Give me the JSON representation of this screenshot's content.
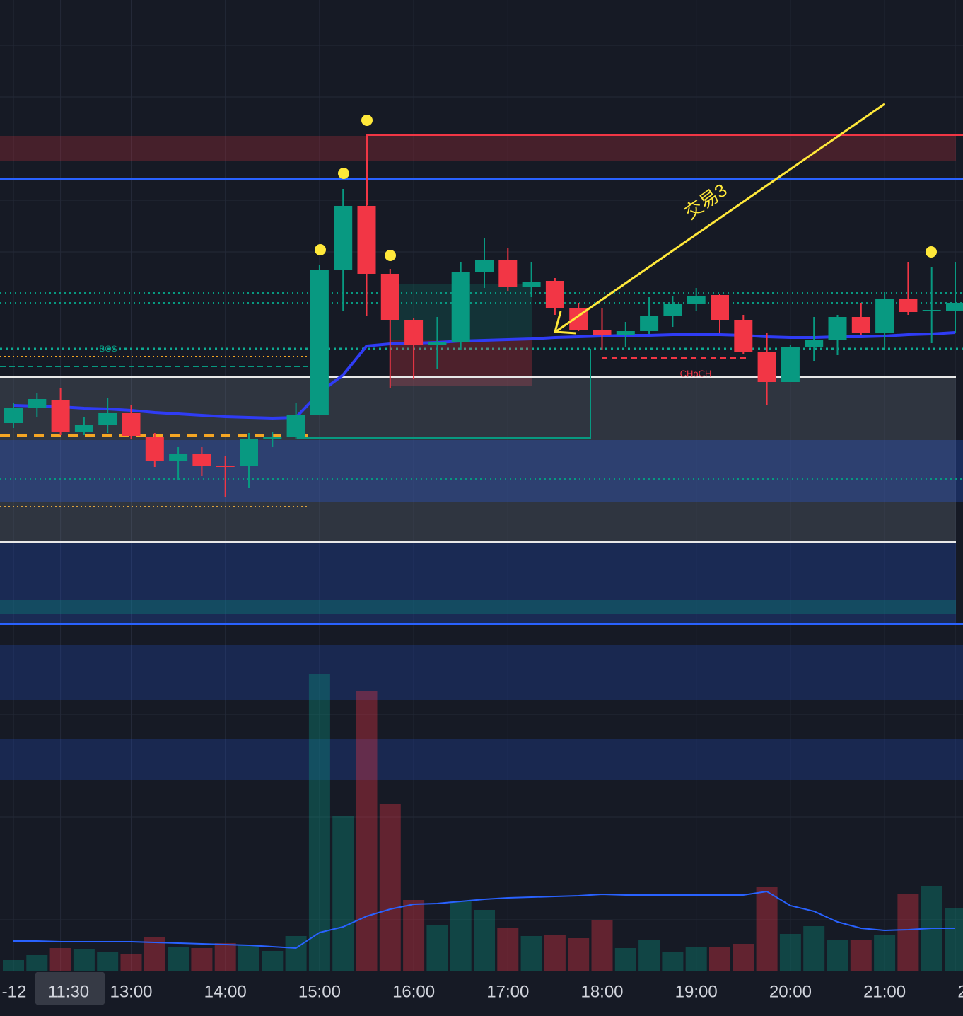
{
  "chart_data": {
    "type": "candlestick",
    "categories": [
      "-12",
      null,
      "11:30",
      null,
      null,
      "13:00",
      null,
      null,
      null,
      "14:00",
      null,
      null,
      null,
      "15:00",
      null,
      null,
      null,
      "16:00",
      null,
      null,
      null,
      "17:00",
      null,
      null,
      null,
      "18:00",
      null,
      null,
      null,
      "19:00",
      null,
      null,
      null,
      "20:00",
      null,
      null,
      null,
      "21:00",
      null,
      null,
      "2"
    ],
    "open": [
      28.2,
      30.3,
      31.5,
      27.0,
      27.9,
      29.6,
      26.2,
      22.8,
      23.8,
      22.2,
      22.2,
      26.0,
      26.3,
      29.4,
      49.9,
      58.9,
      49.3,
      42.8,
      39.2,
      39.6,
      49.6,
      51.3,
      47.5,
      48.3,
      44.5,
      41.4,
      40.6,
      41.2,
      43.4,
      45.0,
      46.3,
      42.8,
      38.3,
      34.0,
      39.0,
      39.9,
      43.2,
      41.0,
      45.7,
      44.0,
      44.0
    ],
    "high": [
      31.0,
      32.5,
      33.1,
      29.0,
      31.8,
      30.8,
      26.8,
      24.8,
      24.8,
      23.5,
      26.8,
      27.0,
      31.0,
      50.5,
      61.3,
      68.9,
      50.0,
      43.0,
      43.2,
      51.0,
      54.3,
      53.0,
      51.0,
      48.7,
      45.2,
      44.5,
      42.5,
      46.0,
      46.2,
      47.3,
      46.5,
      43.5,
      41.0,
      39.2,
      43.2,
      43.5,
      45.2,
      46.7,
      51.0,
      50.2,
      51.0
    ],
    "low": [
      27.5,
      29.0,
      26.5,
      26.5,
      26.8,
      26.0,
      22.0,
      20.2,
      20.7,
      17.7,
      19.0,
      24.8,
      26.0,
      29.4,
      44.0,
      43.3,
      33.2,
      34.5,
      35.8,
      38.5,
      47.3,
      46.8,
      46.0,
      43.5,
      41.2,
      38.6,
      39.0,
      40.8,
      41.8,
      44.0,
      41.0,
      38.0,
      30.7,
      34.0,
      37.0,
      37.8,
      40.7,
      38.8,
      43.5,
      39.5,
      41.0
    ],
    "close": [
      30.3,
      31.6,
      27.0,
      27.9,
      29.6,
      26.4,
      22.8,
      23.8,
      22.2,
      22.0,
      26.0,
      26.3,
      29.4,
      49.9,
      58.9,
      49.3,
      42.8,
      39.2,
      39.6,
      49.6,
      51.3,
      47.5,
      48.2,
      44.5,
      41.4,
      40.6,
      41.2,
      43.4,
      45.0,
      46.2,
      42.8,
      38.3,
      34.0,
      39.0,
      39.9,
      43.2,
      41.0,
      45.7,
      43.9,
      44.2,
      45.2
    ],
    "vwap": [
      30.7,
      30.6,
      30.5,
      30.3,
      30.2,
      30.0,
      29.7,
      29.5,
      29.3,
      29.1,
      29.0,
      28.9,
      29.0,
      32.5,
      35.0,
      39.1,
      39.4,
      39.5,
      39.6,
      39.8,
      39.9,
      40.0,
      40.1,
      40.3,
      40.4,
      40.5,
      40.6,
      40.6,
      40.7,
      40.7,
      40.7,
      40.6,
      40.4,
      40.3,
      40.3,
      40.4,
      40.4,
      40.5,
      40.7,
      40.8,
      41.0
    ],
    "volume": [
      15,
      22,
      32,
      30,
      27,
      24,
      47,
      34,
      32,
      39,
      37,
      28,
      49,
      419,
      219,
      395,
      236,
      100,
      65,
      99,
      86,
      61,
      49,
      51,
      46,
      71,
      32,
      43,
      26,
      34,
      34,
      38,
      119,
      52,
      63,
      44,
      43,
      51,
      108,
      120,
      89
    ],
    "volume_ma": [
      42,
      42,
      41,
      41,
      41,
      41,
      40,
      39,
      38,
      37,
      36,
      34,
      32,
      54,
      62,
      77,
      87,
      94,
      95,
      98,
      101,
      103,
      104,
      105,
      106,
      108,
      107,
      107,
      107,
      107,
      107,
      107,
      112,
      92,
      84,
      69,
      60,
      57,
      58,
      60,
      60
    ],
    "ylim": [
      0,
      88
    ],
    "volume_lim": [
      0,
      472
    ],
    "up_color": "#089981",
    "down_color": "#f23645",
    "vwap_color": "#2f3cf5",
    "volume_ma_color": "#2962ff",
    "annotations": [
      "交易3",
      "BOS",
      "CHoCH"
    ]
  }
}
